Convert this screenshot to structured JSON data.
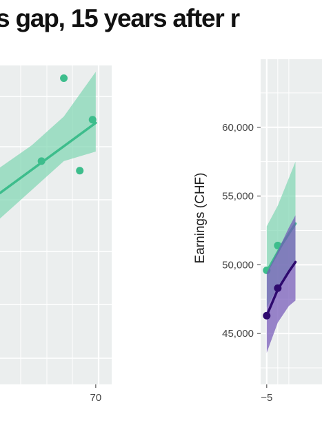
{
  "title": "s gap,  15 years after r",
  "colors": {
    "panel_bg": "#ebeeee",
    "grid": "#ffffff",
    "green": "#3dbd8c",
    "green_band": "#7fd6b2",
    "purple": "#2e0a6e",
    "purple_band": "#7356b8"
  },
  "chart_data": [
    {
      "type": "scatter",
      "panel": "left",
      "xlabel": "",
      "ylabel": "",
      "x_tick_labels": [
        "70"
      ],
      "x_ticks": [
        70
      ],
      "xlim": [
        40,
        75
      ],
      "ylim": [
        0,
        100
      ],
      "grid": true,
      "series": [
        {
          "color": "green",
          "points": [
            [
              60,
              96
            ],
            [
              53,
              70
            ],
            [
              65,
              67
            ],
            [
              69,
              83
            ]
          ],
          "fit": {
            "x": [
              40,
              70
            ],
            "y": [
              60,
              82
            ]
          },
          "band_upper": [
            [
              40,
              68
            ],
            [
              50,
              75
            ],
            [
              60,
              84
            ],
            [
              70,
              98
            ]
          ],
          "band_lower": [
            [
              40,
              52
            ],
            [
              50,
              61
            ],
            [
              60,
              70
            ],
            [
              70,
              73
            ]
          ]
        }
      ]
    },
    {
      "type": "scatter",
      "panel": "right",
      "xlabel": "",
      "ylabel": "Earnings (CHF)",
      "x_tick_labels": [
        "−5"
      ],
      "x_ticks": [
        -5
      ],
      "y_tick_labels": [
        "45,000",
        "50,000",
        "55,000",
        "60,000"
      ],
      "y_ticks": [
        45000,
        50000,
        55000,
        60000
      ],
      "xlim": [
        -5.55,
        0
      ],
      "ylim": [
        41300,
        65000
      ],
      "grid": true,
      "series": [
        {
          "color": "green",
          "points": [
            [
              -5,
              49600
            ],
            [
              -4,
              51400
            ]
          ],
          "fit": {
            "x": [
              -5,
              -3.6,
              -2.4
            ],
            "y": [
              49500,
              51500,
              53000
            ]
          },
          "band_upper": [
            [
              -5,
              52800
            ],
            [
              -4,
              54300
            ],
            [
              -3,
              56300
            ],
            [
              -2.4,
              57500
            ]
          ],
          "band_lower": [
            [
              -5,
              46900
            ],
            [
              -4,
              48400
            ],
            [
              -3,
              49500
            ],
            [
              -2.4,
              50000
            ]
          ]
        },
        {
          "color": "purple",
          "points": [
            [
              -5,
              46300
            ],
            [
              -4,
              48300
            ]
          ],
          "fit": {
            "x": [
              -5,
              -4,
              -3,
              -2.4
            ],
            "y": [
              46300,
              48200,
              49500,
              50200
            ]
          },
          "band_upper": [
            [
              -5,
              49400
            ],
            [
              -4,
              51000
            ],
            [
              -3,
              52700
            ],
            [
              -2.4,
              53600
            ]
          ],
          "band_lower": [
            [
              -5,
              43600
            ],
            [
              -4,
              45800
            ],
            [
              -3,
              47000
            ],
            [
              -2.4,
              47400
            ]
          ]
        }
      ]
    }
  ]
}
